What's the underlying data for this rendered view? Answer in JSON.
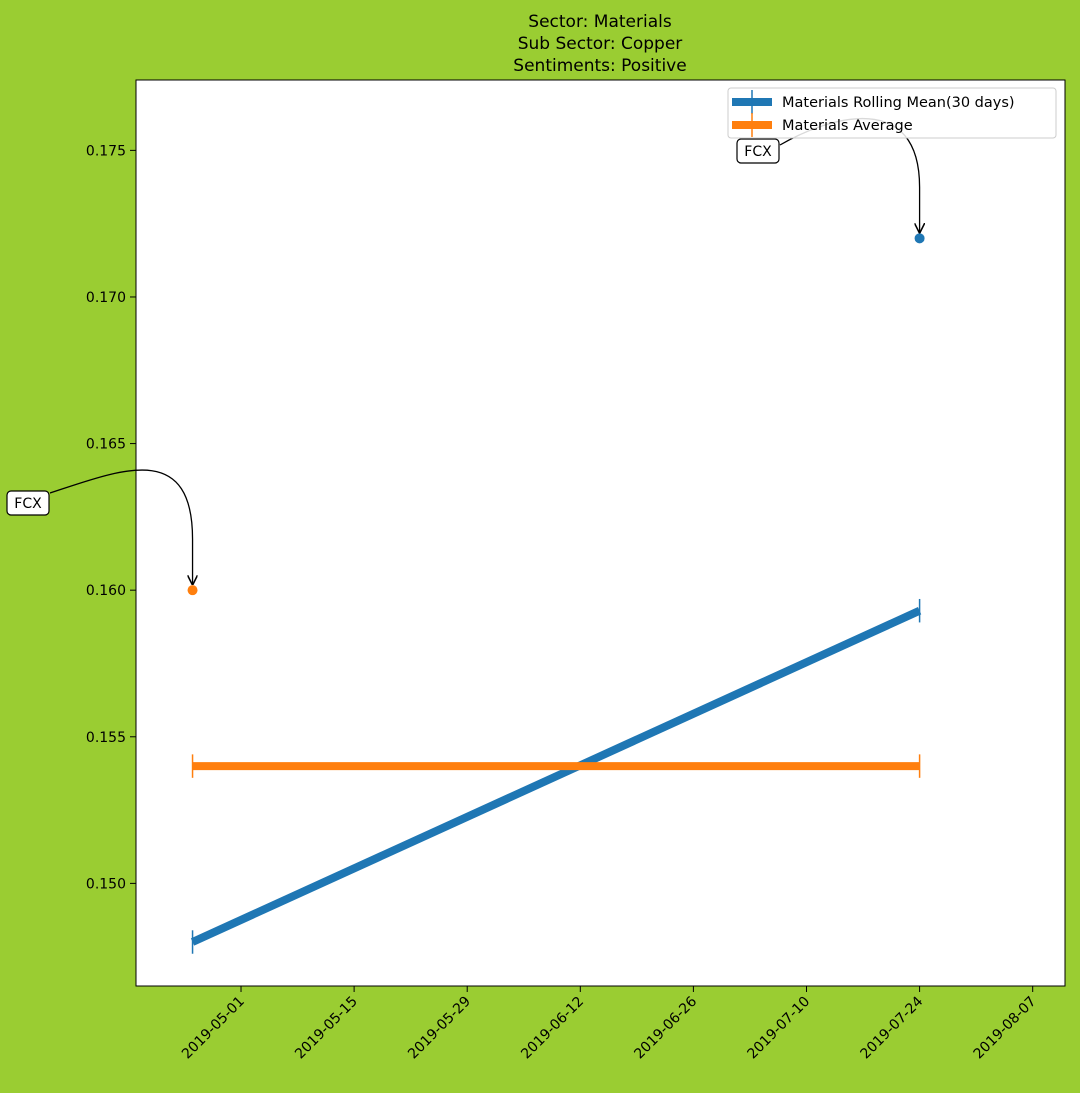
{
  "chart_data": {
    "type": "line",
    "title_lines": [
      "Sector:  Materials",
      "Sub Sector:  Copper",
      "Sentiments:  Positive"
    ],
    "xlabel": "",
    "ylabel": "",
    "x_ticks": [
      "2019-05-01",
      "2019-05-15",
      "2019-05-29",
      "2019-06-12",
      "2019-06-26",
      "2019-07-10",
      "2019-07-24",
      "2019-08-07"
    ],
    "y_ticks": [
      "0.150",
      "0.155",
      "0.160",
      "0.165",
      "0.170",
      "0.175"
    ],
    "xlim": [
      "2019-04-18",
      "2019-08-11"
    ],
    "ylim": [
      0.1465,
      0.1774
    ],
    "series": [
      {
        "name": "Materials Rolling Mean(30 days)",
        "color": "#1f77b4",
        "x": [
          "2019-04-25",
          "2019-07-24"
        ],
        "y": [
          0.148,
          0.1593
        ],
        "errorbar": 0.0004
      },
      {
        "name": "Materials Average",
        "color": "#ff7f0e",
        "x": [
          "2019-04-25",
          "2019-07-24"
        ],
        "y": [
          0.154,
          0.154
        ],
        "errorbar": 0.0004
      }
    ],
    "points": [
      {
        "x": "2019-07-24",
        "y": 0.172,
        "color": "#1f77b4",
        "label": "FCX"
      },
      {
        "x": "2019-04-25",
        "y": 0.16,
        "color": "#ff7f0e",
        "label": "FCX"
      }
    ],
    "legend_position": "upper-right",
    "grid": false,
    "background_color": "#9acd32"
  }
}
